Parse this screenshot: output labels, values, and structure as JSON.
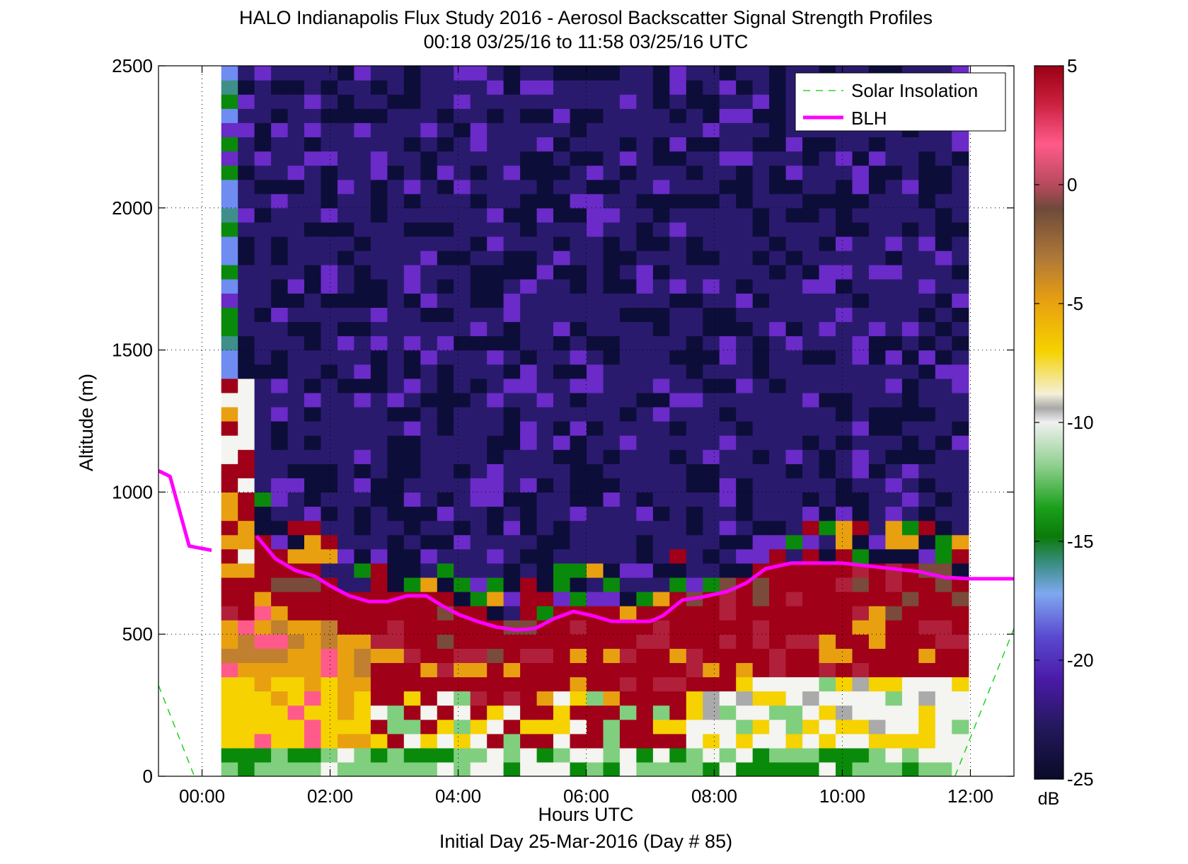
{
  "chart_data": {
    "type": "heatmap",
    "title": "HALO Indianapolis Flux Study 2016 - Aerosol Backscatter Signal Strength Profiles",
    "subtitle": "00:18 03/25/16 to 11:58 03/25/16  UTC",
    "xlabel": "Hours UTC",
    "xlabel2": "Initial Day 25-Mar-2016 (Day # 85)",
    "ylabel": "Altitude (m)",
    "xlim": [
      -0.68,
      12.68
    ],
    "ylim": [
      0,
      2500
    ],
    "x_ticks": [
      0,
      2,
      4,
      6,
      8,
      10,
      12
    ],
    "x_tick_labels": [
      "00:00",
      "02:00",
      "04:00",
      "06:00",
      "08:00",
      "10:00",
      "12:00"
    ],
    "y_ticks": [
      0,
      500,
      1000,
      1500,
      2000,
      2500
    ],
    "y_tick_labels": [
      "0",
      "500",
      "1000",
      "1500",
      "2000",
      "2500"
    ],
    "grid": true,
    "colorbar": {
      "label": "dB",
      "range": [
        -25,
        5
      ],
      "ticks": [
        5,
        0,
        -5,
        -10,
        -15,
        -20,
        -25
      ],
      "tick_labels": [
        "5",
        "0",
        "-5",
        "-10",
        "-15",
        "-20",
        "-25"
      ],
      "colormap": [
        "#0d0d3a",
        "#2a1a6e",
        "#6a2bc8",
        "#6f8cf0",
        "#3e8f8a",
        "#0a8a0a",
        "#7fcf7f",
        "#f4f4f0",
        "#aaaaaa",
        "#f5d200",
        "#e8a010",
        "#c08030",
        "#7a4a3a",
        "#b0203a",
        "#ff5a8a",
        "#a00018"
      ]
    },
    "legend": {
      "position": "top-right",
      "entries": [
        "Solar Insolation",
        "BLH"
      ],
      "colors": [
        "#00cc00",
        "#ff00ff"
      ]
    },
    "time_range_hours": [
      0.3,
      11.97
    ],
    "altitude_bin_m": 50,
    "series": [
      {
        "name": "BLH",
        "x": [
          -0.68,
          -0.5,
          -0.2,
          0.15,
          0.5,
          0.85,
          1.15,
          1.45,
          1.75,
          2.0,
          2.3,
          2.6,
          2.9,
          3.2,
          3.5,
          3.75,
          4.0,
          4.3,
          4.6,
          4.9,
          5.2,
          5.5,
          5.8,
          6.1,
          6.4,
          6.7,
          7.0,
          7.2,
          7.5,
          7.8,
          8.2,
          8.5,
          8.8,
          9.2,
          9.6,
          10.0,
          10.4,
          10.8,
          11.2,
          11.6,
          12.0,
          12.68
        ],
        "y": [
          1075,
          1055,
          810,
          795,
          null,
          845,
          765,
          725,
          705,
          670,
          635,
          615,
          615,
          635,
          635,
          600,
          570,
          545,
          525,
          515,
          520,
          555,
          580,
          565,
          545,
          545,
          545,
          565,
          620,
          630,
          650,
          680,
          730,
          750,
          750,
          750,
          740,
          730,
          720,
          700,
          695,
          695
        ]
      },
      {
        "name": "Solar Insolation",
        "x": [
          -0.68,
          -0.12,
          11.76,
          12.68
        ],
        "y": [
          320,
          0,
          0,
          520
        ]
      }
    ]
  }
}
